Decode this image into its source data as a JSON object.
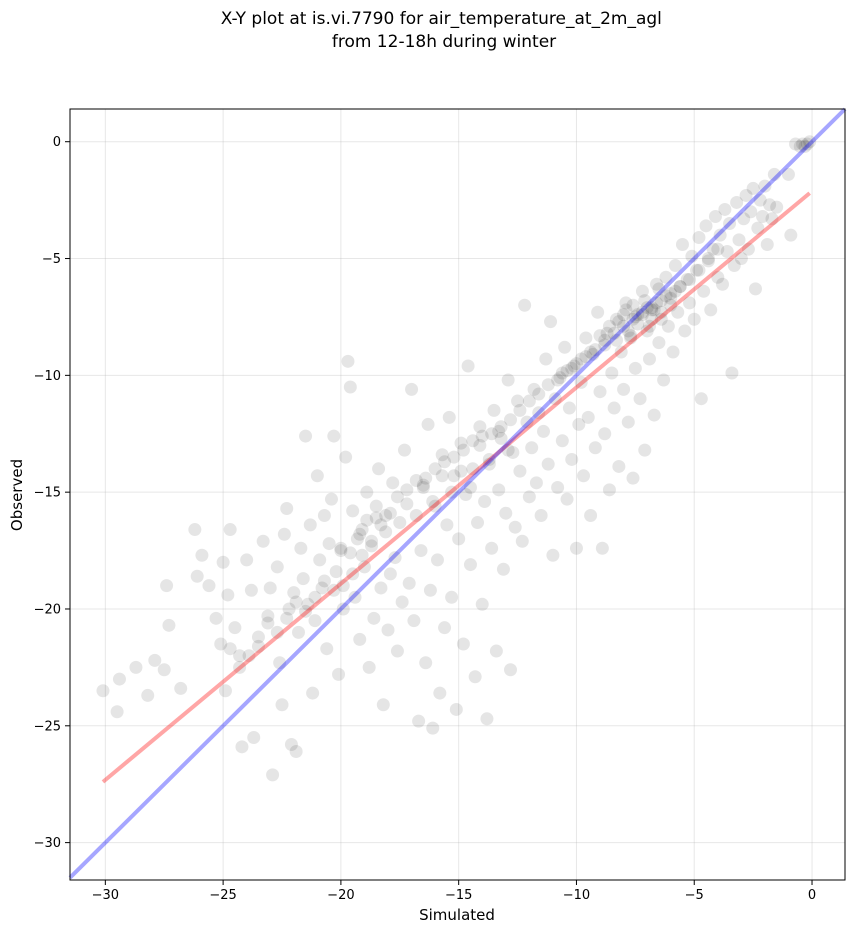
{
  "chart_data": {
    "type": "scatter",
    "title": "X-Y plot at is.vi.7790 for air_temperature_at_2m_agl\nfrom 12-18h during winter",
    "xlabel": "Simulated",
    "ylabel": "Observed",
    "xlim": [
      -31.5,
      1.4
    ],
    "ylim": [
      -31.6,
      1.4
    ],
    "xticks": [
      -30,
      -25,
      -20,
      -15,
      -10,
      -5,
      0
    ],
    "yticks": [
      0,
      -5,
      -10,
      -15,
      -20,
      -25,
      -30
    ],
    "xtick_labels": [
      "−30",
      "−25",
      "−20",
      "−15",
      "−10",
      "−5",
      "0"
    ],
    "ytick_labels": [
      "0",
      "−5",
      "−10",
      "−15",
      "−20",
      "−25",
      "−30"
    ],
    "grid": true,
    "marker_color": "#000000",
    "marker_alpha": 0.1,
    "points": [
      [
        -30.1,
        -23.5
      ],
      [
        -29.5,
        -24.4
      ],
      [
        -29.4,
        -23.0
      ],
      [
        -28.7,
        -22.5
      ],
      [
        -28.2,
        -23.7
      ],
      [
        -27.9,
        -22.2
      ],
      [
        -27.4,
        -19.0
      ],
      [
        -27.3,
        -20.7
      ],
      [
        -27.5,
        -22.6
      ],
      [
        -26.8,
        -23.4
      ],
      [
        -26.2,
        -16.6
      ],
      [
        -26.1,
        -18.6
      ],
      [
        -25.9,
        -17.7
      ],
      [
        -25.6,
        -19.0
      ],
      [
        -25.3,
        -20.4
      ],
      [
        -25.1,
        -21.5
      ],
      [
        -25.0,
        -18.0
      ],
      [
        -24.9,
        -23.5
      ],
      [
        -24.8,
        -19.4
      ],
      [
        -24.7,
        -16.6
      ],
      [
        -24.5,
        -20.8
      ],
      [
        -24.3,
        -22.0
      ],
      [
        -24.2,
        -25.9
      ],
      [
        -24.0,
        -17.9
      ],
      [
        -23.8,
        -19.2
      ],
      [
        -23.7,
        -25.5
      ],
      [
        -23.5,
        -21.6
      ],
      [
        -23.3,
        -17.1
      ],
      [
        -23.1,
        -20.3
      ],
      [
        -23.0,
        -19.1
      ],
      [
        -22.9,
        -27.1
      ],
      [
        -22.7,
        -18.2
      ],
      [
        -22.6,
        -22.3
      ],
      [
        -22.5,
        -24.1
      ],
      [
        -22.4,
        -16.8
      ],
      [
        -22.3,
        -15.7
      ],
      [
        -22.2,
        -20.0
      ],
      [
        -22.1,
        -25.8
      ],
      [
        -22.0,
        -19.3
      ],
      [
        -21.9,
        -26.1
      ],
      [
        -21.8,
        -21.0
      ],
      [
        -21.7,
        -17.4
      ],
      [
        -21.6,
        -18.7
      ],
      [
        -21.5,
        -12.6
      ],
      [
        -21.4,
        -19.8
      ],
      [
        -21.3,
        -16.4
      ],
      [
        -21.2,
        -23.6
      ],
      [
        -21.1,
        -20.5
      ],
      [
        -21.0,
        -14.3
      ],
      [
        -20.9,
        -17.9
      ],
      [
        -20.8,
        -19.1
      ],
      [
        -20.7,
        -16.0
      ],
      [
        -20.6,
        -21.7
      ],
      [
        -20.5,
        -17.2
      ],
      [
        -20.4,
        -15.3
      ],
      [
        -20.3,
        -12.6
      ],
      [
        -20.2,
        -18.4
      ],
      [
        -20.1,
        -22.8
      ],
      [
        -20.0,
        -17.5
      ],
      [
        -19.9,
        -20.0
      ],
      [
        -19.8,
        -13.5
      ],
      [
        -19.7,
        -9.4
      ],
      [
        -19.6,
        -10.5
      ],
      [
        -19.5,
        -15.8
      ],
      [
        -19.4,
        -19.5
      ],
      [
        -19.3,
        -17.0
      ],
      [
        -19.2,
        -21.3
      ],
      [
        -19.1,
        -16.6
      ],
      [
        -19.0,
        -18.2
      ],
      [
        -18.9,
        -15.0
      ],
      [
        -18.8,
        -22.5
      ],
      [
        -18.7,
        -17.3
      ],
      [
        -18.6,
        -20.4
      ],
      [
        -18.5,
        -16.1
      ],
      [
        -18.4,
        -14.0
      ],
      [
        -18.3,
        -19.1
      ],
      [
        -18.2,
        -24.1
      ],
      [
        -18.1,
        -16.7
      ],
      [
        -18.0,
        -20.9
      ],
      [
        -17.9,
        -18.5
      ],
      [
        -17.8,
        -14.6
      ],
      [
        -17.7,
        -17.8
      ],
      [
        -17.6,
        -21.8
      ],
      [
        -17.5,
        -16.3
      ],
      [
        -17.4,
        -19.7
      ],
      [
        -17.3,
        -13.2
      ],
      [
        -17.2,
        -15.5
      ],
      [
        -17.1,
        -18.9
      ],
      [
        -17.0,
        -10.6
      ],
      [
        -16.9,
        -20.5
      ],
      [
        -16.8,
        -16.0
      ],
      [
        -16.7,
        -24.8
      ],
      [
        -16.6,
        -17.5
      ],
      [
        -16.5,
        -14.8
      ],
      [
        -16.4,
        -22.3
      ],
      [
        -16.3,
        -12.1
      ],
      [
        -16.2,
        -19.2
      ],
      [
        -16.1,
        -25.1
      ],
      [
        -16.0,
        -15.6
      ],
      [
        -15.9,
        -17.9
      ],
      [
        -15.8,
        -23.6
      ],
      [
        -15.7,
        -13.4
      ],
      [
        -15.6,
        -20.8
      ],
      [
        -15.5,
        -16.4
      ],
      [
        -15.4,
        -11.8
      ],
      [
        -15.3,
        -19.5
      ],
      [
        -15.2,
        -14.3
      ],
      [
        -15.1,
        -24.3
      ],
      [
        -15.0,
        -17.0
      ],
      [
        -14.9,
        -12.9
      ],
      [
        -14.8,
        -21.5
      ],
      [
        -14.7,
        -15.1
      ],
      [
        -14.6,
        -9.6
      ],
      [
        -14.5,
        -18.1
      ],
      [
        -14.4,
        -14.0
      ],
      [
        -14.3,
        -22.9
      ],
      [
        -14.2,
        -16.3
      ],
      [
        -14.1,
        -12.2
      ],
      [
        -14.0,
        -19.8
      ],
      [
        -13.9,
        -15.4
      ],
      [
        -13.8,
        -24.7
      ],
      [
        -13.7,
        -13.6
      ],
      [
        -13.6,
        -17.4
      ],
      [
        -13.5,
        -11.5
      ],
      [
        -13.4,
        -21.8
      ],
      [
        -13.3,
        -14.9
      ],
      [
        -13.2,
        -12.7
      ],
      [
        -13.1,
        -18.3
      ],
      [
        -13.0,
        -15.9
      ],
      [
        -12.9,
        -10.2
      ],
      [
        -12.8,
        -22.6
      ],
      [
        -12.7,
        -13.3
      ],
      [
        -12.6,
        -16.5
      ],
      [
        -12.5,
        -11.1
      ],
      [
        -12.4,
        -14.1
      ],
      [
        -12.3,
        -17.1
      ],
      [
        -12.2,
        -7.0
      ],
      [
        -12.1,
        -12.0
      ],
      [
        -12.0,
        -15.2
      ],
      [
        -11.9,
        -13.1
      ],
      [
        -11.8,
        -10.6
      ],
      [
        -11.7,
        -14.6
      ],
      [
        -11.6,
        -11.6
      ],
      [
        -11.5,
        -16.0
      ],
      [
        -11.4,
        -12.4
      ],
      [
        -11.3,
        -9.3
      ],
      [
        -11.2,
        -13.8
      ],
      [
        -11.1,
        -7.7
      ],
      [
        -11.0,
        -17.7
      ],
      [
        -10.9,
        -11.0
      ],
      [
        -10.8,
        -14.8
      ],
      [
        -10.7,
        -10.1
      ],
      [
        -10.6,
        -12.8
      ],
      [
        -10.5,
        -8.8
      ],
      [
        -10.4,
        -15.3
      ],
      [
        -10.3,
        -11.4
      ],
      [
        -10.2,
        -13.6
      ],
      [
        -10.1,
        -9.6
      ],
      [
        -10.0,
        -17.4
      ],
      [
        -9.9,
        -12.1
      ],
      [
        -9.8,
        -10.3
      ],
      [
        -9.7,
        -14.3
      ],
      [
        -9.6,
        -8.4
      ],
      [
        -9.5,
        -11.8
      ],
      [
        -9.4,
        -16.0
      ],
      [
        -9.3,
        -9.1
      ],
      [
        -9.2,
        -13.1
      ],
      [
        -9.1,
        -7.3
      ],
      [
        -9.0,
        -10.7
      ],
      [
        -8.9,
        -17.4
      ],
      [
        -8.8,
        -12.5
      ],
      [
        -8.7,
        -8.2
      ],
      [
        -8.6,
        -14.9
      ],
      [
        -8.5,
        -9.9
      ],
      [
        -8.4,
        -11.4
      ],
      [
        -8.3,
        -7.6
      ],
      [
        -8.2,
        -13.9
      ],
      [
        -8.1,
        -9.0
      ],
      [
        -8.0,
        -10.6
      ],
      [
        -7.9,
        -6.9
      ],
      [
        -7.8,
        -12.0
      ],
      [
        -7.7,
        -8.4
      ],
      [
        -7.6,
        -14.4
      ],
      [
        -7.5,
        -9.7
      ],
      [
        -7.4,
        -7.4
      ],
      [
        -7.3,
        -11.0
      ],
      [
        -7.2,
        -6.4
      ],
      [
        -7.1,
        -13.2
      ],
      [
        -7.0,
        -8.1
      ],
      [
        -6.9,
        -9.3
      ],
      [
        -6.8,
        -7.2
      ],
      [
        -6.7,
        -11.7
      ],
      [
        -6.6,
        -6.1
      ],
      [
        -6.5,
        -8.6
      ],
      [
        -6.4,
        -7.6
      ],
      [
        -6.3,
        -10.2
      ],
      [
        -6.2,
        -5.8
      ],
      [
        -6.1,
        -7.9
      ],
      [
        -6.0,
        -6.7
      ],
      [
        -5.9,
        -9.0
      ],
      [
        -5.8,
        -5.3
      ],
      [
        -5.7,
        -7.3
      ],
      [
        -5.6,
        -6.2
      ],
      [
        -5.5,
        -4.4
      ],
      [
        -5.4,
        -8.1
      ],
      [
        -5.3,
        -5.9
      ],
      [
        -5.2,
        -6.9
      ],
      [
        -5.1,
        -4.9
      ],
      [
        -5.0,
        -7.6
      ],
      [
        -4.9,
        -5.5
      ],
      [
        -4.8,
        -4.1
      ],
      [
        -4.7,
        -11.0
      ],
      [
        -4.6,
        -6.4
      ],
      [
        -4.5,
        -3.6
      ],
      [
        -4.4,
        -5.1
      ],
      [
        -4.3,
        -7.2
      ],
      [
        -4.2,
        -4.6
      ],
      [
        -4.1,
        -3.2
      ],
      [
        -4.0,
        -5.8
      ],
      [
        -3.9,
        -4.0
      ],
      [
        -3.8,
        -6.1
      ],
      [
        -3.7,
        -2.9
      ],
      [
        -3.6,
        -4.7
      ],
      [
        -3.5,
        -3.5
      ],
      [
        -3.4,
        -9.9
      ],
      [
        -3.3,
        -5.3
      ],
      [
        -3.2,
        -2.6
      ],
      [
        -3.1,
        -4.2
      ],
      [
        -3.0,
        -5.0
      ],
      [
        -2.9,
        -3.3
      ],
      [
        -2.8,
        -2.3
      ],
      [
        -2.7,
        -4.6
      ],
      [
        -2.6,
        -3.0
      ],
      [
        -2.5,
        -2.0
      ],
      [
        -2.4,
        -6.3
      ],
      [
        -2.3,
        -3.7
      ],
      [
        -2.2,
        -2.5
      ],
      [
        -2.1,
        -3.2
      ],
      [
        -2.0,
        -1.9
      ],
      [
        -1.9,
        -4.4
      ],
      [
        -1.8,
        -2.7
      ],
      [
        -1.7,
        -3.3
      ],
      [
        -1.6,
        -1.4
      ],
      [
        -1.5,
        -2.8
      ],
      [
        -1.0,
        -1.4
      ],
      [
        -0.9,
        -4.0
      ],
      [
        -0.7,
        -0.1
      ],
      [
        -0.5,
        -0.2
      ],
      [
        -0.4,
        -0.1
      ],
      [
        -0.3,
        -0.2
      ],
      [
        -0.2,
        -0.1
      ],
      [
        -0.1,
        -0.0
      ],
      [
        -20.0,
        -17.4
      ],
      [
        -19.6,
        -17.6
      ],
      [
        -19.2,
        -16.8
      ],
      [
        -18.9,
        -16.2
      ],
      [
        -18.5,
        -15.6
      ],
      [
        -18.1,
        -16.0
      ],
      [
        -17.6,
        -15.2
      ],
      [
        -17.2,
        -14.9
      ],
      [
        -16.8,
        -14.5
      ],
      [
        -16.4,
        -14.4
      ],
      [
        -16.0,
        -14.0
      ],
      [
        -15.6,
        -13.7
      ],
      [
        -15.2,
        -13.5
      ],
      [
        -14.8,
        -13.2
      ],
      [
        -14.4,
        -12.8
      ],
      [
        -14.0,
        -12.6
      ],
      [
        -13.6,
        -12.5
      ],
      [
        -13.2,
        -12.2
      ],
      [
        -12.8,
        -11.9
      ],
      [
        -12.4,
        -11.5
      ],
      [
        -12.0,
        -11.1
      ],
      [
        -11.6,
        -10.8
      ],
      [
        -11.2,
        -10.4
      ],
      [
        -10.8,
        -10.2
      ],
      [
        -10.4,
        -9.8
      ],
      [
        -10.0,
        -9.5
      ],
      [
        -9.6,
        -9.2
      ],
      [
        -9.2,
        -8.9
      ],
      [
        -8.8,
        -8.5
      ],
      [
        -8.4,
        -8.2
      ],
      [
        -8.0,
        -7.9
      ],
      [
        -7.6,
        -7.6
      ],
      [
        -7.2,
        -7.3
      ],
      [
        -6.8,
        -7.1
      ],
      [
        -6.4,
        -6.8
      ],
      [
        -6.0,
        -6.5
      ],
      [
        -5.6,
        -6.2
      ],
      [
        -5.2,
        -5.9
      ],
      [
        -4.8,
        -5.5
      ],
      [
        -4.4,
        -5.0
      ],
      [
        -4.0,
        -4.6
      ],
      [
        -8.6,
        -7.9
      ],
      [
        -8.3,
        -8.5
      ],
      [
        -8.0,
        -7.4
      ],
      [
        -7.8,
        -8.1
      ],
      [
        -7.6,
        -7.0
      ],
      [
        -7.4,
        -7.8
      ],
      [
        -7.2,
        -7.4
      ],
      [
        -7.0,
        -7.1
      ],
      [
        -6.8,
        -7.6
      ],
      [
        -6.6,
        -6.9
      ],
      [
        -6.4,
        -7.3
      ],
      [
        -6.2,
        -6.6
      ],
      [
        -6.0,
        -7.0
      ],
      [
        -5.8,
        -6.4
      ],
      [
        -7.9,
        -7.2
      ],
      [
        -7.5,
        -7.5
      ],
      [
        -7.1,
        -6.8
      ],
      [
        -6.7,
        -7.2
      ],
      [
        -8.2,
        -7.7
      ],
      [
        -7.7,
        -8.3
      ],
      [
        -6.9,
        -7.9
      ],
      [
        -6.5,
        -6.3
      ],
      [
        -8.8,
        -8.7
      ],
      [
        -9.0,
        -8.3
      ],
      [
        -9.4,
        -9.0
      ],
      [
        -9.8,
        -9.3
      ],
      [
        -10.2,
        -9.7
      ],
      [
        -10.6,
        -9.9
      ],
      [
        -16.5,
        -14.7
      ],
      [
        -16.1,
        -15.4
      ],
      [
        -15.7,
        -14.3
      ],
      [
        -15.3,
        -15.0
      ],
      [
        -14.9,
        -14.1
      ],
      [
        -14.5,
        -14.8
      ],
      [
        -14.1,
        -13.0
      ],
      [
        -13.7,
        -13.8
      ],
      [
        -13.3,
        -12.4
      ],
      [
        -12.9,
        -13.2
      ],
      [
        -17.9,
        -15.9
      ],
      [
        -18.3,
        -16.4
      ],
      [
        -18.7,
        -17.1
      ],
      [
        -19.1,
        -17.7
      ],
      [
        -19.5,
        -18.5
      ],
      [
        -19.9,
        -19.0
      ],
      [
        -20.3,
        -19.2
      ],
      [
        -20.7,
        -18.8
      ],
      [
        -21.1,
        -19.5
      ],
      [
        -21.5,
        -20.1
      ],
      [
        -21.9,
        -19.7
      ],
      [
        -22.3,
        -20.4
      ],
      [
        -22.7,
        -21.0
      ],
      [
        -23.1,
        -20.6
      ],
      [
        -23.5,
        -21.2
      ],
      [
        -23.9,
        -22.0
      ],
      [
        -24.3,
        -22.5
      ],
      [
        -24.7,
        -21.7
      ]
    ],
    "lines": [
      {
        "color": "#ff0000",
        "alpha": 0.35,
        "x": [
          -30.1,
          -0.1
        ],
        "y": [
          -27.4,
          -2.2
        ]
      },
      {
        "color": "#0000ff",
        "alpha": 0.35,
        "x": [
          -31.5,
          1.4
        ],
        "y": [
          -31.5,
          1.4
        ]
      }
    ]
  }
}
